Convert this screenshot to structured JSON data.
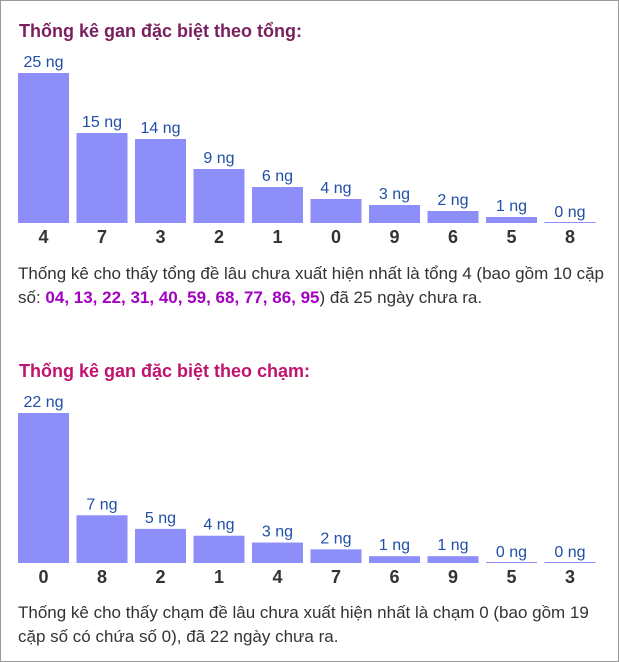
{
  "section1": {
    "title": "Thống kê gan đặc biệt theo tổng:",
    "text_before": "Thống kê cho thấy tổng đề lâu chưa xuất hiện nhất là tổng 4 (bao gồm 10 cặp số: ",
    "highlight": "04, 13, 22, 31, 40, 59, 68, 77, 86, 95",
    "text_after": ") đã 25 ngày chưa ra."
  },
  "section2": {
    "title": "Thống kê gan đặc biệt theo chạm:",
    "text": "Thống kê cho thấy chạm đề lâu chưa xuất hiện nhất là chạm 0 (bao gồm 19 cặp số có chứa số 0), đã 22 ngày chưa ra."
  },
  "colors": {
    "bar": "#8e8efa",
    "value_label": "#1f4fa8",
    "category_label": "#333333"
  },
  "chart_data": [
    {
      "type": "bar",
      "categories": [
        "4",
        "7",
        "3",
        "2",
        "1",
        "0",
        "9",
        "6",
        "5",
        "8"
      ],
      "values": [
        25,
        15,
        14,
        9,
        6,
        4,
        3,
        2,
        1,
        0
      ],
      "data_labels": [
        "25 ng",
        "15 ng",
        "14 ng",
        "9 ng",
        "6 ng",
        "4 ng",
        "3 ng",
        "2 ng",
        "1 ng",
        "0 ng"
      ],
      "ylim": [
        0,
        25
      ]
    },
    {
      "type": "bar",
      "categories": [
        "0",
        "8",
        "2",
        "1",
        "4",
        "7",
        "6",
        "9",
        "5",
        "3"
      ],
      "values": [
        22,
        7,
        5,
        4,
        3,
        2,
        1,
        1,
        0,
        0
      ],
      "data_labels": [
        "22 ng",
        "7 ng",
        "5 ng",
        "4 ng",
        "3 ng",
        "2 ng",
        "1 ng",
        "1 ng",
        "0 ng",
        "0 ng"
      ],
      "ylim": [
        0,
        22
      ]
    }
  ]
}
